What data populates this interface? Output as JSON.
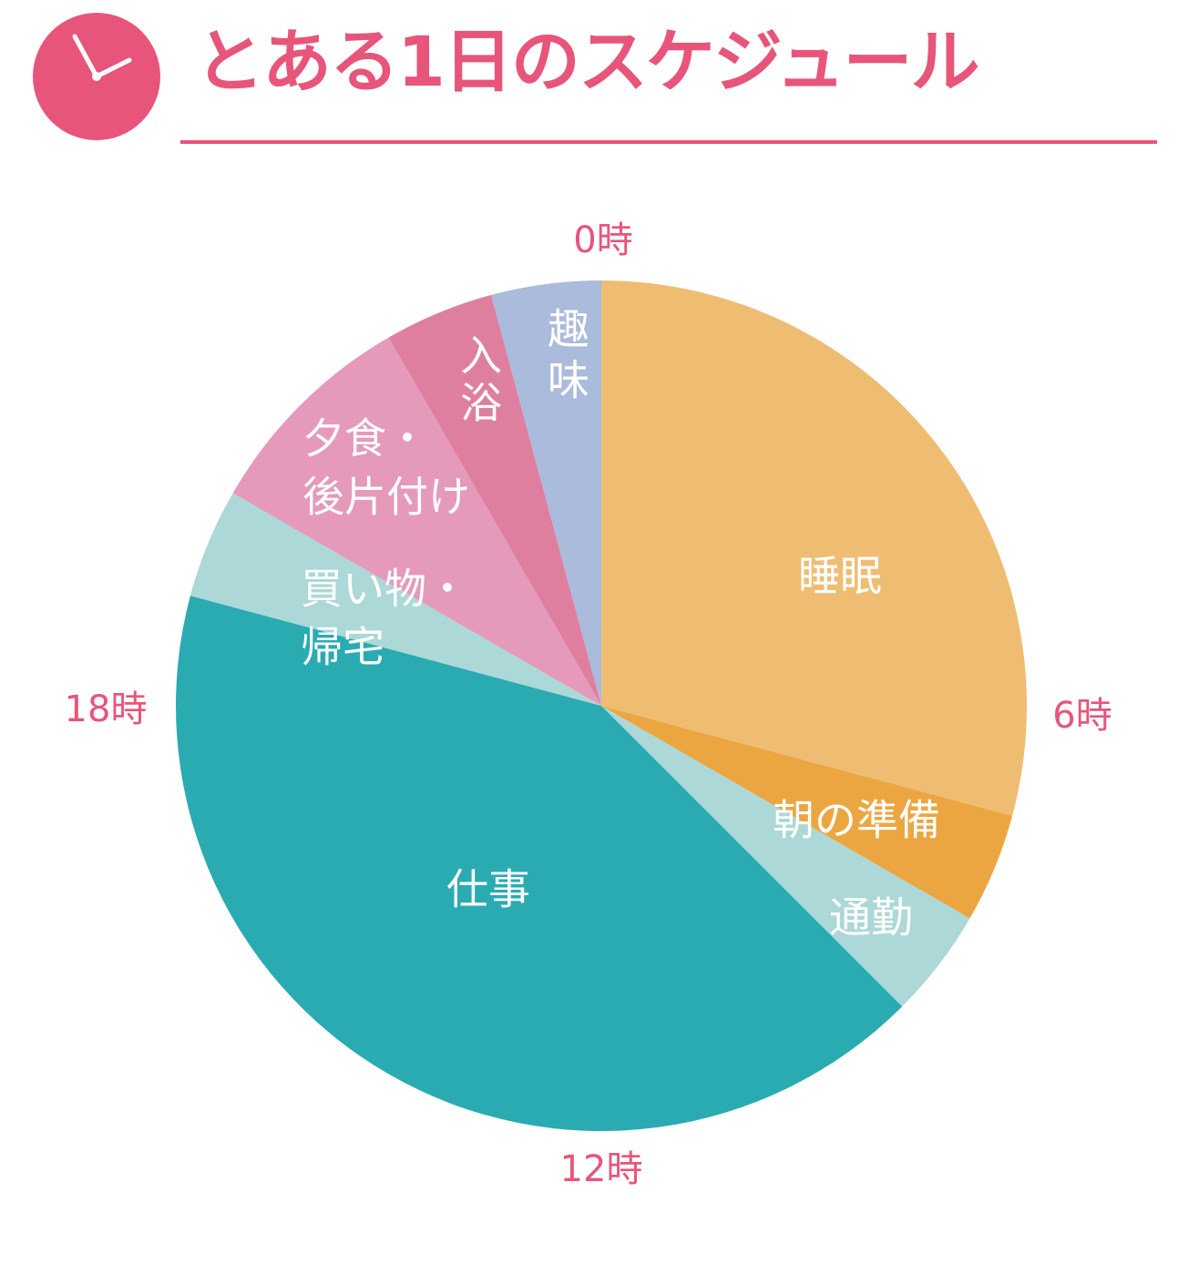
{
  "header": {
    "title": "とある1日のスケジュール",
    "icon": "clock-icon"
  },
  "colors": {
    "accent": "#e8557a",
    "background": "#ffffff",
    "label_text": "#ffffff"
  },
  "chart_data": {
    "type": "pie",
    "title": "とある1日のスケジュール",
    "unit": "hours",
    "total": 24,
    "start": "0時 at top, clockwise",
    "hour_labels": [
      {
        "hour": 0,
        "label": "0時"
      },
      {
        "hour": 6,
        "label": "6時"
      },
      {
        "hour": 12,
        "label": "12時"
      },
      {
        "hour": 18,
        "label": "18時"
      }
    ],
    "slices": [
      {
        "label": [
          "睡眠"
        ],
        "start": 0,
        "end": 7,
        "value": 7,
        "color": "#efbd72"
      },
      {
        "label": [
          "朝の準備"
        ],
        "start": 7,
        "end": 8,
        "value": 1,
        "color": "#eca641"
      },
      {
        "label": [
          "通勤"
        ],
        "start": 8,
        "end": 9,
        "value": 1,
        "color": "#acd8d7"
      },
      {
        "label": [
          "仕事"
        ],
        "start": 9,
        "end": 19,
        "value": 10,
        "color": "#2aabb2"
      },
      {
        "label": [
          "買い物・",
          "帰宅"
        ],
        "start": 19,
        "end": 20,
        "value": 1,
        "color": "#acd8d7"
      },
      {
        "label": [
          "夕食・",
          "後片付け"
        ],
        "start": 20,
        "end": 22,
        "value": 2,
        "color": "#e599bb"
      },
      {
        "label": [
          "入",
          "浴"
        ],
        "start": 22,
        "end": 23,
        "value": 1,
        "color": "#df7fa0"
      },
      {
        "label": [
          "趣",
          "味"
        ],
        "start": 23,
        "end": 24,
        "value": 1,
        "color": "#aabbdb"
      }
    ]
  }
}
